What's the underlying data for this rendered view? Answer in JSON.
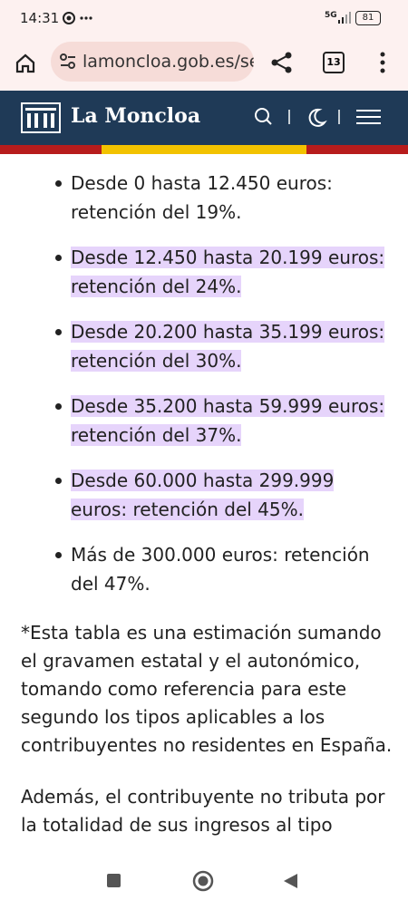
{
  "status_bar": {
    "time": "14:31",
    "network": "5G",
    "battery": "81"
  },
  "browser": {
    "url": "lamoncloa.gob.es/se",
    "tabs": "13"
  },
  "site": {
    "name": "La Moncloa"
  },
  "list": [
    {
      "text": "Desde 0 hasta 12.450 euros: retención del 19%.",
      "highlighted": false
    },
    {
      "text": "Desde 12.450 hasta 20.199 euros: retención del 24%.",
      "highlighted": true
    },
    {
      "text": "Desde 20.200 hasta 35.199 euros: retención del 30%.",
      "highlighted": true
    },
    {
      "text": "Desde 35.200 hasta 59.999 euros: retención del 37%.",
      "highlighted": true
    },
    {
      "text": "Desde 60.000 hasta 299.999 euros: retención del 45%.",
      "highlighted": true
    },
    {
      "text": "Más de 300.000 euros: retención del 47%.",
      "highlighted": false
    }
  ],
  "paragraphs": [
    "*Esta tabla es una estimación sumando el gravamen estatal y el autonómico, tomando como referencia para este segundo los tipos aplicables a los contribuyentes no residentes en España.",
    "Además, el contribuyente no tributa por la totalidad de sus ingresos al tipo"
  ]
}
